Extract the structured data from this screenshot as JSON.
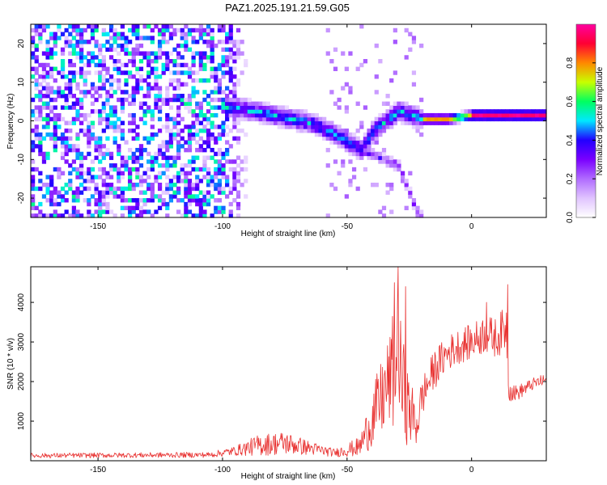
{
  "figure": {
    "title": "PAZ1.2025.191.21.59.G05"
  },
  "chart_data": [
    {
      "type": "heatmap",
      "xlabel": "Height of straight line (km)",
      "ylabel": "Frequency (Hz)",
      "xlim": [
        -177,
        30
      ],
      "ylim": [
        -25,
        25
      ],
      "xticks": [
        -150,
        -100,
        -50,
        0
      ],
      "yticks": [
        -20,
        -10,
        0,
        10,
        20
      ],
      "colorbar": {
        "label": "Normalized spectral amplitude",
        "range": [
          0,
          1
        ],
        "ticks": [
          "0.0",
          "0.2",
          "0.4",
          "0.6",
          "0.8"
        ],
        "tick_values": [
          0,
          0.2,
          0.4,
          0.6,
          0.8
        ]
      },
      "colormap": [
        "#ffffff",
        "#e0c4ff",
        "#b06bff",
        "#7a00ff",
        "#2200ff",
        "#00e8ff",
        "#00ff60",
        "#c8ff00",
        "#ff8800",
        "#ff0033",
        "#ff00a0"
      ],
      "features": {
        "noise_region_x": [
          -177,
          -100
        ],
        "noise_amplitude": 0.2,
        "signal_center_freq": [
          {
            "x": -95,
            "freq": 3
          },
          {
            "x": -80,
            "freq": 1
          },
          {
            "x": -65,
            "freq": -1
          },
          {
            "x": -55,
            "freq": -4
          },
          {
            "x": -45,
            "freq": -8
          },
          {
            "x": -40,
            "freq": -3
          },
          {
            "x": -30,
            "freq": 2
          },
          {
            "x": -20,
            "freq": 0
          },
          {
            "x": -10,
            "freq": 0
          },
          {
            "x": 0,
            "freq": 1
          },
          {
            "x": 10,
            "freq": 1
          },
          {
            "x": 30,
            "freq": 1
          }
        ],
        "tone_start_x": -20,
        "tone_peak_amplitude": 1.0,
        "lower_branch": [
          {
            "x": -45,
            "freq": -8
          },
          {
            "x": -30,
            "freq": -12
          },
          {
            "x": -22,
            "freq": -25
          }
        ]
      }
    },
    {
      "type": "line",
      "xlabel": "Height of straight line (km)",
      "ylabel": "SNR (10 * v/v)",
      "xlim": [
        -177,
        30
      ],
      "ylim": [
        0,
        4900
      ],
      "xticks": [
        -150,
        -100,
        -50,
        0
      ],
      "yticks": [
        1000,
        2000,
        3000,
        4000
      ],
      "series": [
        {
          "color": "#e8302f",
          "noise_profile": [
            {
              "x": -177,
              "mean": 130,
              "amp": 60
            },
            {
              "x": -105,
              "mean": 150,
              "amp": 70
            },
            {
              "x": -95,
              "mean": 250,
              "amp": 120
            },
            {
              "x": -85,
              "mean": 400,
              "amp": 280
            },
            {
              "x": -75,
              "mean": 450,
              "amp": 300
            },
            {
              "x": -65,
              "mean": 320,
              "amp": 180
            },
            {
              "x": -55,
              "mean": 200,
              "amp": 100
            },
            {
              "x": -45,
              "mean": 350,
              "amp": 250
            },
            {
              "x": -38,
              "mean": 1300,
              "amp": 900
            },
            {
              "x": -33,
              "mean": 2000,
              "amp": 1200
            },
            {
              "x": -30,
              "mean": 2500,
              "amp": 1800
            },
            {
              "x": -26,
              "mean": 1400,
              "amp": 1000
            },
            {
              "x": -22,
              "mean": 900,
              "amp": 600
            },
            {
              "x": -20,
              "mean": 1600,
              "amp": 500
            },
            {
              "x": -15,
              "mean": 2300,
              "amp": 500
            },
            {
              "x": -10,
              "mean": 2700,
              "amp": 450
            },
            {
              "x": -5,
              "mean": 2900,
              "amp": 450
            },
            {
              "x": 0,
              "mean": 3000,
              "amp": 450
            },
            {
              "x": 5,
              "mean": 3200,
              "amp": 500
            },
            {
              "x": 10,
              "mean": 3100,
              "amp": 500
            },
            {
              "x": 14,
              "mean": 3400,
              "amp": 600
            },
            {
              "x": 15,
              "mean": 1800,
              "amp": 300
            },
            {
              "x": 18,
              "mean": 1700,
              "amp": 200
            },
            {
              "x": 25,
              "mean": 1950,
              "amp": 150
            },
            {
              "x": 30,
              "mean": 2050,
              "amp": 150
            }
          ],
          "peaks": [
            {
              "x": -29.5,
              "y": 4900
            },
            {
              "x": -31,
              "y": 4500
            },
            {
              "x": -26.5,
              "y": 4400
            },
            {
              "x": 14.5,
              "y": 4450
            },
            {
              "x": 6,
              "y": 4000
            }
          ]
        }
      ]
    }
  ]
}
